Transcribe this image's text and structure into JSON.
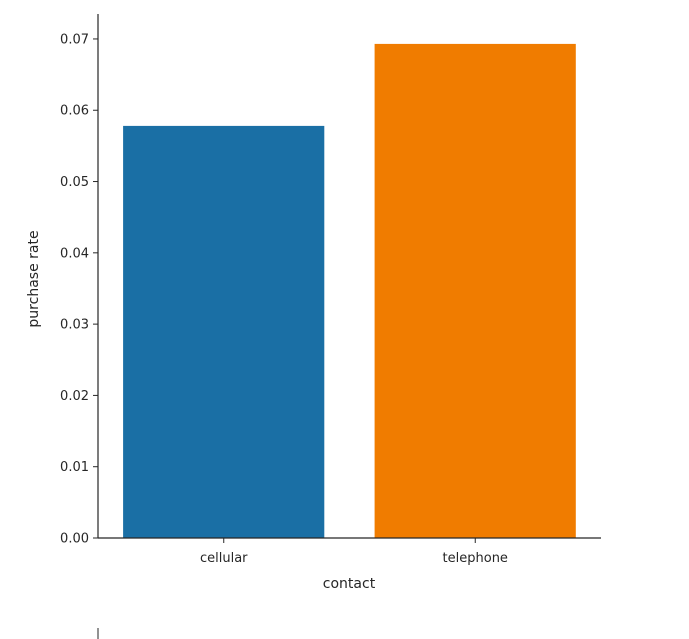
{
  "chart_data": {
    "type": "bar",
    "xlabel": "contact",
    "ylabel": "purchase rate",
    "categories": [
      "cellular",
      "telephone"
    ],
    "values": [
      0.0578,
      0.0693
    ],
    "colors": [
      "#1a6fa5",
      "#f07c00"
    ],
    "ylim": [
      0,
      0.0735
    ],
    "yticks": [
      0.0,
      0.01,
      0.02,
      0.03,
      0.04,
      0.05,
      0.06,
      0.07
    ],
    "ytick_labels": [
      "0.00",
      "0.01",
      "0.02",
      "0.03",
      "0.04",
      "0.05",
      "0.06",
      "0.07"
    ],
    "grid": false,
    "spines": "left-bottom"
  }
}
